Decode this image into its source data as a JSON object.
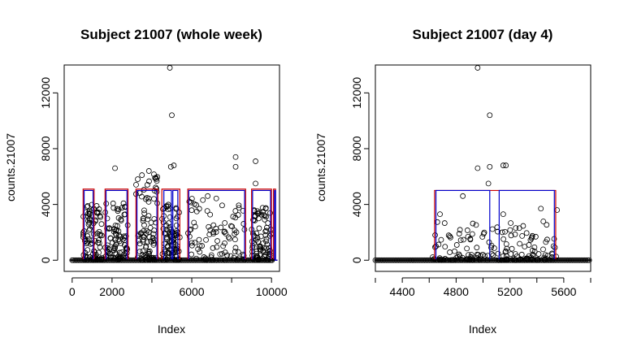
{
  "chart_data": [
    {
      "type": "scatter",
      "title": "Subject 21007 (whole week)",
      "xlabel": "Index",
      "ylabel": "counts.21007",
      "xlim": [
        -400,
        10400
      ],
      "ylim": [
        -800,
        14000
      ],
      "xticks": [
        0,
        2000,
        6000,
        10000
      ],
      "xtick_labels": [
        "0",
        "2000",
        "6000",
        "10000"
      ],
      "yticks": [
        0,
        4000,
        8000,
        12000
      ],
      "ytick_labels": [
        "0",
        "4000",
        "8000",
        "12000"
      ],
      "grid": false,
      "legend": "none",
      "clusters": [
        {
          "x0": 550,
          "x1": 1500,
          "peak": 4000
        },
        {
          "x0": 1650,
          "x1": 2800,
          "peak": 4200
        },
        {
          "x0": 3200,
          "x1": 4300,
          "peak": 6200
        },
        {
          "x0": 4500,
          "x1": 5400,
          "peak": 4000
        },
        {
          "x0": 5800,
          "x1": 8700,
          "peak": 4500
        },
        {
          "x0": 9000,
          "x1": 10000,
          "peak": 3800
        }
      ],
      "outliers": [
        [
          4900,
          13800
        ],
        [
          5000,
          10400
        ],
        [
          4950,
          6700
        ],
        [
          5100,
          6800
        ],
        [
          2150,
          6600
        ],
        [
          3850,
          6400
        ],
        [
          8200,
          7400
        ],
        [
          8200,
          6700
        ],
        [
          9200,
          7100
        ],
        [
          9200,
          5500
        ],
        [
          6800,
          4600
        ],
        [
          3500,
          6100
        ]
      ],
      "series": [
        {
          "color": "#cc0000",
          "kind": "state-line",
          "high": 5100,
          "low": 0,
          "segments": [
            [
              -100,
              0
            ],
            [
              550,
              5100
            ],
            [
              1100,
              0
            ],
            [
              1650,
              5100
            ],
            [
              2800,
              0
            ],
            [
              3200,
              5100
            ],
            [
              4300,
              0
            ],
            [
              4500,
              5100
            ],
            [
              5400,
              0
            ],
            [
              5800,
              5100
            ],
            [
              8700,
              0
            ],
            [
              9000,
              5100
            ],
            [
              10000,
              0
            ],
            [
              10100,
              5100
            ],
            [
              10200,
              0
            ]
          ]
        },
        {
          "color": "#0000cc",
          "kind": "state-line",
          "high": 5000,
          "low": 0,
          "segments": [
            [
              -100,
              0
            ],
            [
              600,
              5000
            ],
            [
              1050,
              0
            ],
            [
              1700,
              5000
            ],
            [
              2750,
              0
            ],
            [
              3250,
              5000
            ],
            [
              4250,
              0
            ],
            [
              4600,
              5000
            ],
            [
              4980,
              0
            ],
            [
              5050,
              5000
            ],
            [
              5300,
              0
            ],
            [
              5850,
              5000
            ],
            [
              8650,
              0
            ],
            [
              9050,
              5000
            ],
            [
              9950,
              0
            ],
            [
              10150,
              5000
            ],
            [
              10200,
              0
            ]
          ]
        }
      ]
    },
    {
      "type": "scatter",
      "title": "Subject 21007 (day 4)",
      "xlabel": "Index",
      "ylabel": "counts.21007",
      "xlim": [
        4200,
        5800
      ],
      "ylim": [
        -800,
        14000
      ],
      "xticks": [
        4400,
        4800,
        5200,
        5600
      ],
      "xtick_labels": [
        "4400",
        "4800",
        "5200",
        "5600"
      ],
      "yticks": [
        0,
        4000,
        8000,
        12000
      ],
      "ytick_labels": [
        "0",
        "4000",
        "8000",
        "12000"
      ],
      "grid": false,
      "legend": "none",
      "clusters": [
        {
          "x0": 4620,
          "x1": 5550,
          "peak": 2800
        }
      ],
      "outliers": [
        [
          4960,
          13800
        ],
        [
          5050,
          10400
        ],
        [
          4960,
          6600
        ],
        [
          5050,
          6700
        ],
        [
          5150,
          6800
        ],
        [
          5170,
          6800
        ],
        [
          4850,
          4600
        ],
        [
          5040,
          5500
        ],
        [
          5550,
          3600
        ],
        [
          5430,
          3700
        ],
        [
          4680,
          3300
        ],
        [
          5150,
          3300
        ]
      ],
      "series": [
        {
          "color": "#cc0000",
          "kind": "state-line",
          "high": 5000,
          "low": 0,
          "segments": [
            [
              4200,
              0
            ],
            [
              4640,
              5000
            ],
            [
              5540,
              0
            ],
            [
              5800,
              0
            ]
          ]
        },
        {
          "color": "#0000cc",
          "kind": "state-line",
          "high": 5000,
          "low": 0,
          "segments": [
            [
              4200,
              0
            ],
            [
              4650,
              5000
            ],
            [
              5050,
              0
            ],
            [
              5120,
              5000
            ],
            [
              5530,
              0
            ],
            [
              5800,
              0
            ]
          ]
        }
      ]
    }
  ]
}
